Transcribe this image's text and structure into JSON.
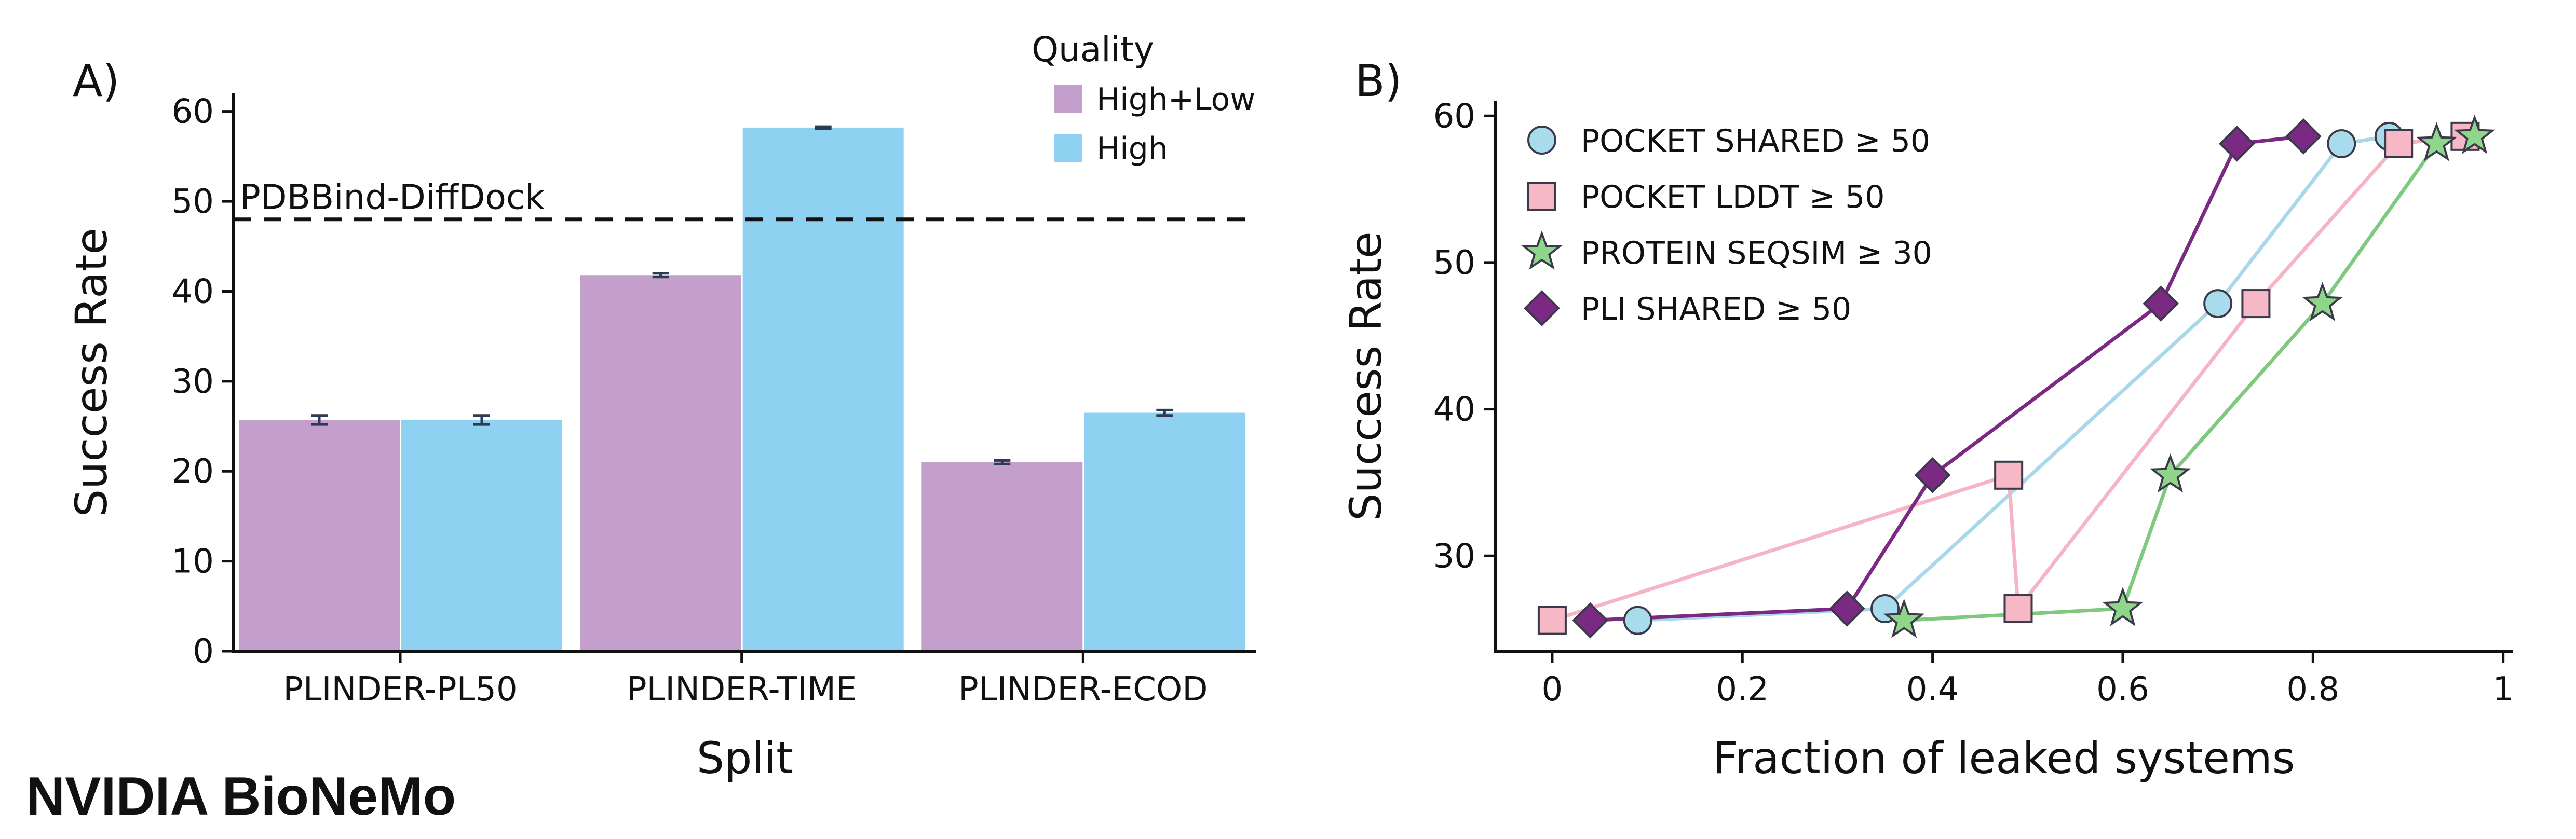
{
  "brand": {
    "text": "NVIDIA BioNeMo",
    "color": "#76b947"
  },
  "colors": {
    "high_low": "#c49fcb",
    "high": "#8ed1f0",
    "error_bar": "#2b3a55",
    "axis": "#111111"
  },
  "panels": {
    "a_label": "A)",
    "b_label": "B)"
  },
  "chart_data": [
    {
      "type": "bar",
      "panel": "A)",
      "xlabel": "Split",
      "ylabel": "Success Rate",
      "categories": [
        "PLINDER-PL50",
        "PLINDER-TIME",
        "PLINDER-ECOD"
      ],
      "series": [
        {
          "name": "High+Low",
          "color": "#c49fcb",
          "values": [
            25.7,
            41.8,
            21.0
          ],
          "errors": [
            0.5,
            0.2,
            0.2
          ]
        },
        {
          "name": "High",
          "color": "#8ed1f0",
          "values": [
            25.7,
            58.2,
            26.5
          ],
          "errors": [
            0.5,
            0.1,
            0.3
          ]
        }
      ],
      "ylim": [
        0,
        62
      ],
      "yticks": [
        0,
        10,
        20,
        30,
        40,
        50,
        60
      ],
      "legend": {
        "title": "Quality",
        "position": "top-right"
      },
      "reference_line": {
        "label": "PDBBind-DiffDock",
        "value": 48.0,
        "style": "dashed"
      }
    },
    {
      "type": "line",
      "panel": "B)",
      "xlabel": "Fraction of leaked systems",
      "ylabel": "Success Rate",
      "xlim": [
        -0.06,
        1.01
      ],
      "ylim": [
        23.5,
        61
      ],
      "xticks": [
        0,
        0.2,
        0.4,
        0.6,
        0.8,
        1
      ],
      "xtick_labels": [
        "0",
        "0.2",
        "0.4",
        "0.6",
        "0.8",
        "1"
      ],
      "yticks": [
        30,
        40,
        50,
        60
      ],
      "legend": {
        "position": "top-left"
      },
      "series": [
        {
          "name": "POCKET SHARED ≥ 50",
          "marker": "circle",
          "line_color": "#a8d8ea",
          "fill": "#a8dcec",
          "points": [
            [
              0.09,
              25.6
            ],
            [
              0.35,
              26.4
            ],
            [
              0.7,
              47.2
            ],
            [
              0.83,
              58.1
            ],
            [
              0.88,
              58.6
            ]
          ]
        },
        {
          "name": "POCKET LDDT ≥ 50",
          "marker": "square",
          "line_color": "#f5b5c5",
          "fill": "#f7b8c6",
          "points": [
            [
              0.0,
              25.6
            ],
            [
              0.48,
              35.5
            ],
            [
              0.49,
              26.4
            ],
            [
              0.74,
              47.2
            ],
            [
              0.89,
              58.1
            ],
            [
              0.96,
              58.6
            ]
          ]
        },
        {
          "name": "PROTEIN SEQSIM ≥ 30",
          "marker": "star",
          "line_color": "#7fc97f",
          "fill": "#8fd68a",
          "points": [
            [
              0.37,
              25.6
            ],
            [
              0.6,
              26.4
            ],
            [
              0.65,
              35.5
            ],
            [
              0.81,
              47.2
            ],
            [
              0.93,
              58.1
            ],
            [
              0.97,
              58.6
            ]
          ]
        },
        {
          "name": "PLI SHARED ≥ 50",
          "marker": "diamond",
          "line_color": "#7b2a83",
          "fill": "#7b2a83",
          "points": [
            [
              0.04,
              25.6
            ],
            [
              0.31,
              26.4
            ],
            [
              0.4,
              35.5
            ],
            [
              0.64,
              47.2
            ],
            [
              0.72,
              58.1
            ],
            [
              0.79,
              58.6
            ]
          ]
        }
      ]
    }
  ]
}
